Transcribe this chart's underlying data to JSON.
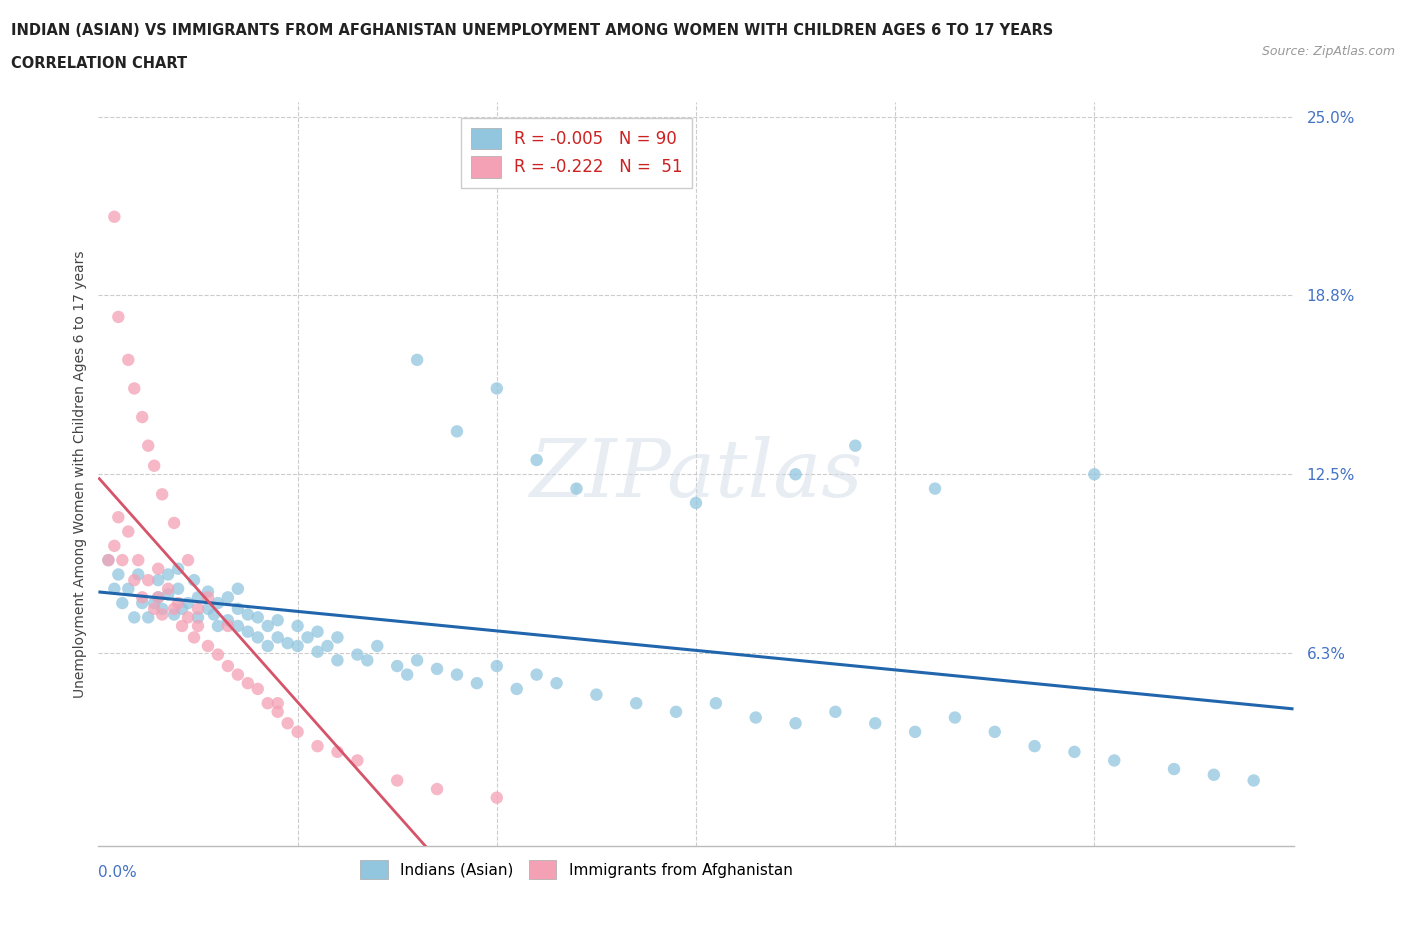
{
  "title_line1": "INDIAN (ASIAN) VS IMMIGRANTS FROM AFGHANISTAN UNEMPLOYMENT AMONG WOMEN WITH CHILDREN AGES 6 TO 17 YEARS",
  "title_line2": "CORRELATION CHART",
  "source_text": "Source: ZipAtlas.com",
  "ylabel": "Unemployment Among Women with Children Ages 6 to 17 years",
  "xlim": [
    0.0,
    0.6
  ],
  "ylim": [
    -0.005,
    0.255
  ],
  "ytick_vals": [
    0.0,
    0.0625,
    0.125,
    0.1875,
    0.25
  ],
  "ytick_labels": [
    "",
    "6.3%",
    "12.5%",
    "18.8%",
    "25.0%"
  ],
  "color_indian": "#92c5de",
  "color_afghan": "#f4a0b5",
  "trend_indian_color": "#2166ac",
  "trend_afghan_solid_color": "#d6546a",
  "trend_afghan_dash_color": "#f0b8c4",
  "watermark": "ZIPatlas",
  "indian_x": [
    0.005,
    0.008,
    0.01,
    0.012,
    0.015,
    0.018,
    0.02,
    0.022,
    0.025,
    0.028,
    0.03,
    0.03,
    0.032,
    0.035,
    0.035,
    0.038,
    0.04,
    0.04,
    0.042,
    0.045,
    0.048,
    0.05,
    0.05,
    0.055,
    0.055,
    0.058,
    0.06,
    0.06,
    0.065,
    0.065,
    0.07,
    0.07,
    0.07,
    0.075,
    0.075,
    0.08,
    0.08,
    0.085,
    0.085,
    0.09,
    0.09,
    0.095,
    0.1,
    0.1,
    0.105,
    0.11,
    0.11,
    0.115,
    0.12,
    0.12,
    0.13,
    0.135,
    0.14,
    0.15,
    0.155,
    0.16,
    0.17,
    0.18,
    0.19,
    0.2,
    0.21,
    0.22,
    0.23,
    0.25,
    0.27,
    0.29,
    0.31,
    0.33,
    0.35,
    0.37,
    0.39,
    0.41,
    0.43,
    0.45,
    0.47,
    0.49,
    0.51,
    0.54,
    0.56,
    0.58,
    0.18,
    0.2,
    0.22,
    0.24,
    0.16,
    0.3,
    0.35,
    0.38,
    0.42,
    0.5
  ],
  "indian_y": [
    0.095,
    0.085,
    0.09,
    0.08,
    0.085,
    0.075,
    0.09,
    0.08,
    0.075,
    0.08,
    0.082,
    0.088,
    0.078,
    0.083,
    0.09,
    0.076,
    0.085,
    0.092,
    0.078,
    0.08,
    0.088,
    0.075,
    0.082,
    0.078,
    0.084,
    0.076,
    0.072,
    0.08,
    0.074,
    0.082,
    0.072,
    0.078,
    0.085,
    0.07,
    0.076,
    0.068,
    0.075,
    0.065,
    0.072,
    0.068,
    0.074,
    0.066,
    0.065,
    0.072,
    0.068,
    0.063,
    0.07,
    0.065,
    0.06,
    0.068,
    0.062,
    0.06,
    0.065,
    0.058,
    0.055,
    0.06,
    0.057,
    0.055,
    0.052,
    0.058,
    0.05,
    0.055,
    0.052,
    0.048,
    0.045,
    0.042,
    0.045,
    0.04,
    0.038,
    0.042,
    0.038,
    0.035,
    0.04,
    0.035,
    0.03,
    0.028,
    0.025,
    0.022,
    0.02,
    0.018,
    0.14,
    0.155,
    0.13,
    0.12,
    0.165,
    0.115,
    0.125,
    0.135,
    0.12,
    0.125
  ],
  "afghan_x": [
    0.005,
    0.008,
    0.01,
    0.012,
    0.015,
    0.018,
    0.02,
    0.022,
    0.025,
    0.028,
    0.03,
    0.03,
    0.032,
    0.035,
    0.038,
    0.04,
    0.042,
    0.045,
    0.048,
    0.05,
    0.05,
    0.055,
    0.06,
    0.065,
    0.07,
    0.075,
    0.08,
    0.085,
    0.09,
    0.095,
    0.1,
    0.11,
    0.12,
    0.13,
    0.15,
    0.17,
    0.2,
    0.008,
    0.01,
    0.015,
    0.018,
    0.022,
    0.025,
    0.028,
    0.032,
    0.038,
    0.045,
    0.055,
    0.065,
    0.09
  ],
  "afghan_y": [
    0.095,
    0.1,
    0.11,
    0.095,
    0.105,
    0.088,
    0.095,
    0.082,
    0.088,
    0.078,
    0.082,
    0.092,
    0.076,
    0.085,
    0.078,
    0.08,
    0.072,
    0.075,
    0.068,
    0.072,
    0.078,
    0.065,
    0.062,
    0.058,
    0.055,
    0.052,
    0.05,
    0.045,
    0.042,
    0.038,
    0.035,
    0.03,
    0.028,
    0.025,
    0.018,
    0.015,
    0.012,
    0.215,
    0.18,
    0.165,
    0.155,
    0.145,
    0.135,
    0.128,
    0.118,
    0.108,
    0.095,
    0.082,
    0.072,
    0.045
  ]
}
